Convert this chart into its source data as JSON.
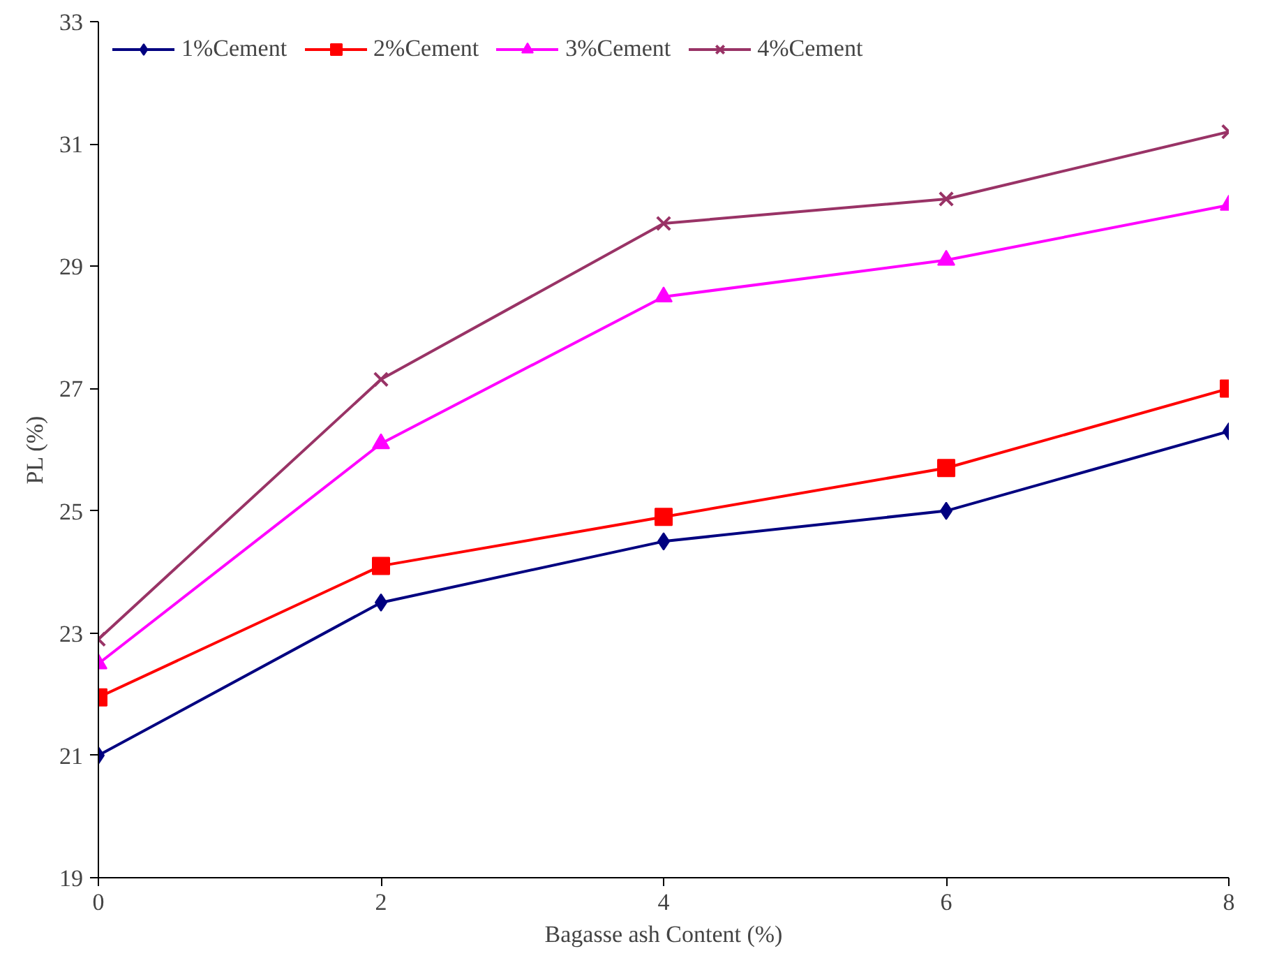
{
  "chart_data": {
    "type": "line",
    "xlabel": "Bagasse ash Content (%)",
    "ylabel": "PL (%)",
    "x": [
      0,
      2,
      4,
      6,
      8
    ],
    "series": [
      {
        "name": "1%Cement",
        "color": "#000080",
        "marker": "diamond",
        "values": [
          21.0,
          23.5,
          24.5,
          25.0,
          26.3
        ]
      },
      {
        "name": "2%Cement",
        "color": "#ff0000",
        "marker": "square",
        "values": [
          21.95,
          24.1,
          24.9,
          25.7,
          27.0
        ]
      },
      {
        "name": "3%Cement",
        "color": "#ff00ff",
        "marker": "triangle",
        "values": [
          22.5,
          26.1,
          28.5,
          29.1,
          30.0
        ]
      },
      {
        "name": "4%Cement",
        "color": "#993366",
        "marker": "cross",
        "values": [
          22.9,
          27.15,
          29.7,
          30.1,
          31.2
        ]
      }
    ],
    "xlim": [
      0,
      8
    ],
    "xticks": [
      0,
      2,
      4,
      6,
      8
    ],
    "ylim": [
      19,
      33
    ],
    "yticks": [
      19,
      21,
      23,
      25,
      27,
      29,
      31,
      33
    ],
    "grid": false,
    "legend": "top left",
    "line_style": "solid"
  }
}
